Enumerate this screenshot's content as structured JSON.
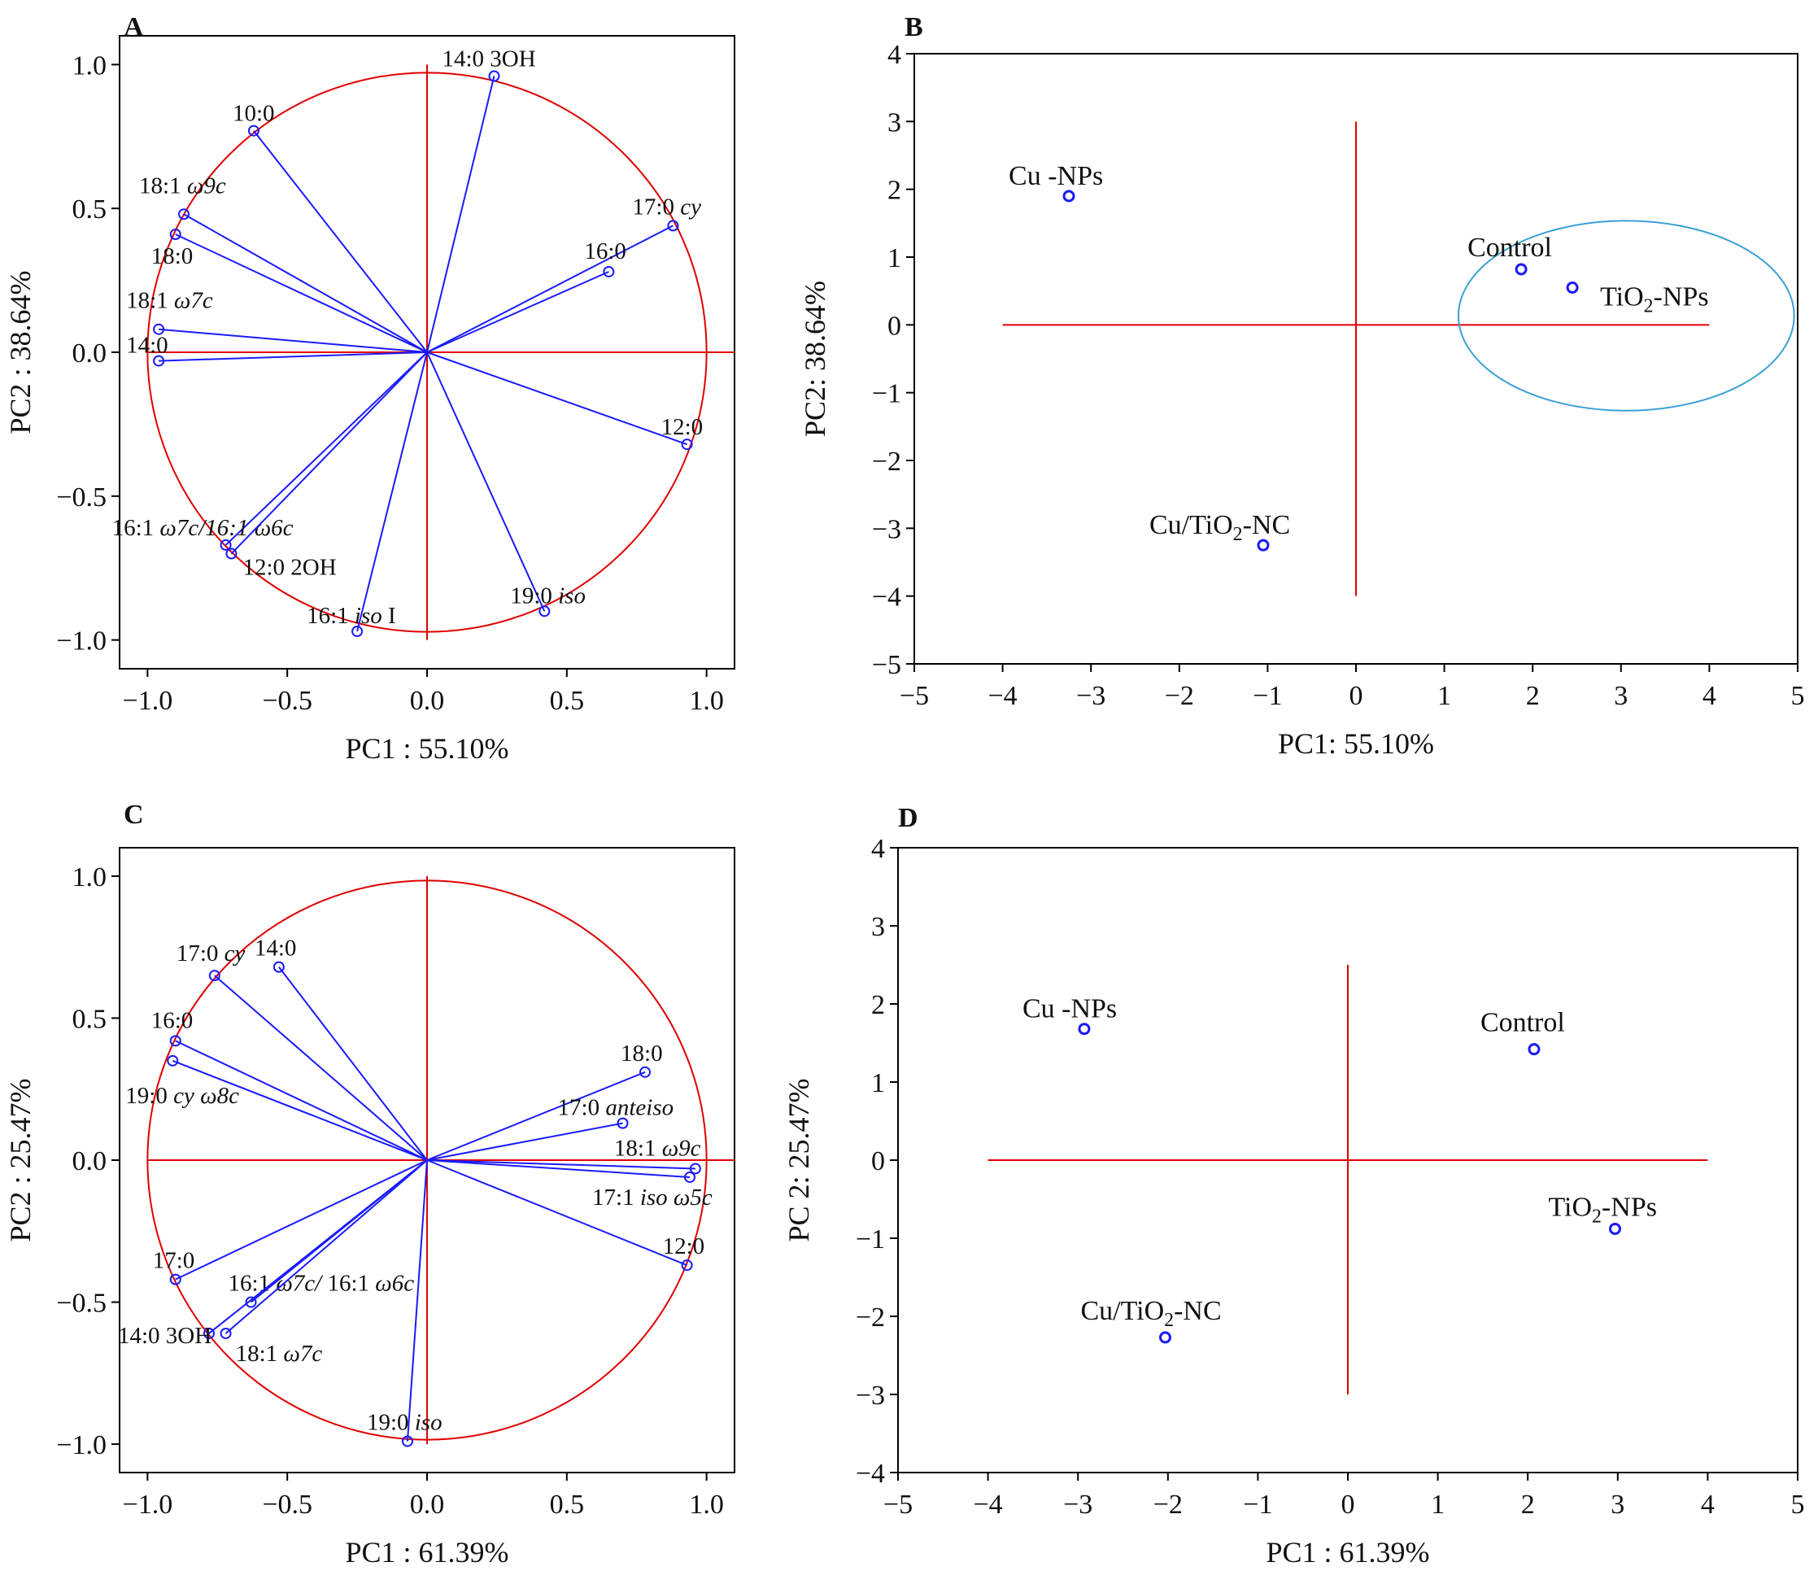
{
  "figure": {
    "colors": {
      "vector": "#1a1aff",
      "circle": "#e00000",
      "axis": "#e00000",
      "frame": "#000000",
      "ellipse": "#3aa0d6",
      "text": "#111111"
    }
  },
  "chart_data": [
    {
      "panel": "A",
      "type": "scatter",
      "subtype": "pca-loadings",
      "xlabel": "PC1 : 55.10%",
      "ylabel": "PC2 : 38.64%",
      "xlim": [
        -1.1,
        1.1
      ],
      "ylim": [
        -1.1,
        1.1
      ],
      "xticks": [
        "−1.0",
        "−0.5",
        "0.0",
        "0.5",
        "1.0"
      ],
      "yticks": [
        "1.0",
        "0.5",
        "0.0",
        "−0.5",
        "−1.0"
      ],
      "unit_circle": true,
      "vectors": [
        {
          "label": "14:0 3OH",
          "x": 0.24,
          "y": 0.96
        },
        {
          "label": "10:0",
          "x": -0.62,
          "y": 0.77
        },
        {
          "label": "17:0 cy",
          "x": 0.88,
          "y": 0.44
        },
        {
          "label": "16:0",
          "x": 0.65,
          "y": 0.28
        },
        {
          "label": "18:1 ω9c",
          "x": -0.87,
          "y": 0.48
        },
        {
          "label": "18:0",
          "x": -0.9,
          "y": 0.41
        },
        {
          "label": "18:1 ω7c",
          "x": -0.96,
          "y": 0.08
        },
        {
          "label": "14:0",
          "x": -0.96,
          "y": -0.03
        },
        {
          "label": "12:0",
          "x": 0.93,
          "y": -0.32
        },
        {
          "label": "16:1 ω7c/16:1 ω6c",
          "x": -0.72,
          "y": -0.67
        },
        {
          "label": "12:0 2OH",
          "x": -0.7,
          "y": -0.7
        },
        {
          "label": "16:1 iso I",
          "x": -0.25,
          "y": -0.97
        },
        {
          "label": "19:0 iso",
          "x": 0.42,
          "y": -0.9
        }
      ]
    },
    {
      "panel": "B",
      "type": "scatter",
      "subtype": "pca-scores",
      "xlabel": "PC1: 55.10%",
      "ylabel": "PC2: 38.64%",
      "xlim": [
        -5,
        5
      ],
      "ylim": [
        -5,
        4
      ],
      "xticks": [
        "−5",
        "−4",
        "−3",
        "−2",
        "−1",
        "0",
        "1",
        "2",
        "3",
        "4",
        "5"
      ],
      "yticks": [
        "4",
        "3",
        "2",
        "1",
        "0",
        "−1",
        "−2",
        "−3",
        "−4",
        "−5"
      ],
      "reference_lines": {
        "x_range": [
          -4,
          4
        ],
        "y_range": [
          -4,
          3
        ]
      },
      "points": [
        {
          "label": "Cu -NPs",
          "x": -3.25,
          "y": 1.9
        },
        {
          "label": "Control",
          "x": 1.87,
          "y": 0.82
        },
        {
          "label": "TiO2-NPs",
          "x": 2.45,
          "y": 0.55
        },
        {
          "label": "Cu/TiO2-NC",
          "x": -1.05,
          "y": -3.25
        }
      ],
      "grouping_ellipse": [
        "Control",
        "TiO2-NPs"
      ]
    },
    {
      "panel": "C",
      "type": "scatter",
      "subtype": "pca-loadings",
      "xlabel": "PC1 : 61.39%",
      "ylabel": "PC2 : 25.47%",
      "xlim": [
        -1.1,
        1.1
      ],
      "ylim": [
        -1.1,
        1.1
      ],
      "xticks": [
        "−1.0",
        "−0.5",
        "0.0",
        "0.5",
        "1.0"
      ],
      "yticks": [
        "1.0",
        "0.5",
        "0.0",
        "−0.5",
        "−1.0"
      ],
      "unit_circle": true,
      "vectors": [
        {
          "label": "17:0 cy",
          "x": -0.76,
          "y": 0.65
        },
        {
          "label": "14:0",
          "x": -0.53,
          "y": 0.68
        },
        {
          "label": "16:0",
          "x": -0.9,
          "y": 0.42
        },
        {
          "label": "19:0 cy ω8c",
          "x": -0.91,
          "y": 0.35
        },
        {
          "label": "18:0",
          "x": 0.78,
          "y": 0.31
        },
        {
          "label": "17:0 anteiso",
          "x": 0.7,
          "y": 0.13
        },
        {
          "label": "18:1 ω9c",
          "x": 0.96,
          "y": -0.03
        },
        {
          "label": "17:1 iso ω5c",
          "x": 0.94,
          "y": -0.06
        },
        {
          "label": "12:0",
          "x": 0.93,
          "y": -0.37
        },
        {
          "label": "17:0",
          "x": -0.9,
          "y": -0.42
        },
        {
          "label": "16:1 ω7c/ 16:1 ω6c",
          "x": -0.63,
          "y": -0.5
        },
        {
          "label": "14:0 3OH",
          "x": -0.78,
          "y": -0.61
        },
        {
          "label": "18:1 ω7c",
          "x": -0.72,
          "y": -0.61
        },
        {
          "label": "19:0 iso",
          "x": -0.07,
          "y": -0.99
        }
      ]
    },
    {
      "panel": "D",
      "type": "scatter",
      "subtype": "pca-scores",
      "xlabel": "PC1 : 61.39%",
      "ylabel": "PC 2: 25.47%",
      "xlim": [
        -5,
        5
      ],
      "ylim": [
        -4,
        4
      ],
      "xticks": [
        "−5",
        "−4",
        "−3",
        "−2",
        "−1",
        "0",
        "1",
        "2",
        "3",
        "4",
        "5"
      ],
      "yticks": [
        "4",
        "3",
        "2",
        "1",
        "0",
        "−1",
        "−2",
        "−3",
        "−4"
      ],
      "reference_lines": {
        "x_range": [
          -4,
          4
        ],
        "y_range": [
          -3,
          2.5
        ]
      },
      "points": [
        {
          "label": "Cu -NPs",
          "x": -2.93,
          "y": 1.68
        },
        {
          "label": "Control",
          "x": 2.07,
          "y": 1.42
        },
        {
          "label": "TiO2-NPs",
          "x": 2.97,
          "y": -0.88
        },
        {
          "label": "Cu/TiO2-NC",
          "x": -2.03,
          "y": -2.27
        }
      ]
    }
  ]
}
